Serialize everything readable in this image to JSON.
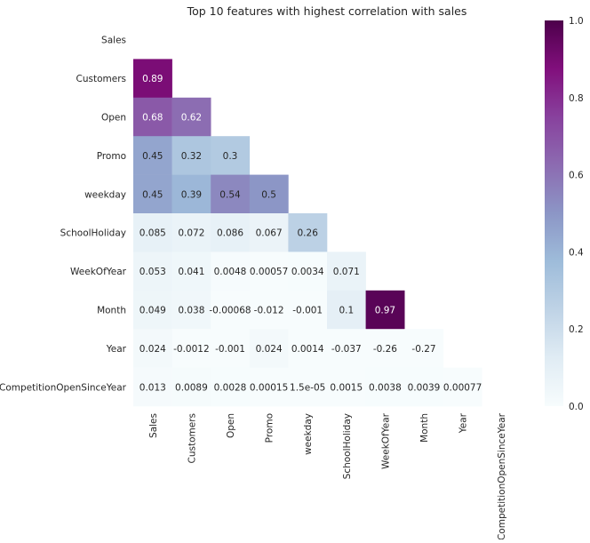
{
  "chart_data": {
    "type": "heatmap",
    "title": "Top 10 features with highest correlation with sales",
    "row_labels": [
      "Sales",
      "Customers",
      "Open",
      "Promo",
      "weekday",
      "SchoolHoliday",
      "WeekOfYear",
      "Month",
      "Year",
      "CompetitionOpenSinceYear"
    ],
    "col_labels": [
      "Sales",
      "Customers",
      "Open",
      "Promo",
      "weekday",
      "SchoolHoliday",
      "WeekOfYear",
      "Month",
      "Year",
      "CompetitionOpenSinceYear"
    ],
    "mask": "upper-triangle-including-diagonal",
    "cells": [
      {
        "row": 1,
        "col": 0,
        "value": 0.89,
        "label": "0.89"
      },
      {
        "row": 2,
        "col": 0,
        "value": 0.68,
        "label": "0.68"
      },
      {
        "row": 2,
        "col": 1,
        "value": 0.62,
        "label": "0.62"
      },
      {
        "row": 3,
        "col": 0,
        "value": 0.45,
        "label": "0.45"
      },
      {
        "row": 3,
        "col": 1,
        "value": 0.32,
        "label": "0.32"
      },
      {
        "row": 3,
        "col": 2,
        "value": 0.3,
        "label": "0.3"
      },
      {
        "row": 4,
        "col": 0,
        "value": 0.45,
        "label": "0.45"
      },
      {
        "row": 4,
        "col": 1,
        "value": 0.39,
        "label": "0.39"
      },
      {
        "row": 4,
        "col": 2,
        "value": 0.54,
        "label": "0.54"
      },
      {
        "row": 4,
        "col": 3,
        "value": 0.5,
        "label": "0.5"
      },
      {
        "row": 5,
        "col": 0,
        "value": 0.085,
        "label": "0.085"
      },
      {
        "row": 5,
        "col": 1,
        "value": 0.072,
        "label": "0.072"
      },
      {
        "row": 5,
        "col": 2,
        "value": 0.086,
        "label": "0.086"
      },
      {
        "row": 5,
        "col": 3,
        "value": 0.067,
        "label": "0.067"
      },
      {
        "row": 5,
        "col": 4,
        "value": 0.26,
        "label": "0.26"
      },
      {
        "row": 6,
        "col": 0,
        "value": 0.053,
        "label": "0.053"
      },
      {
        "row": 6,
        "col": 1,
        "value": 0.041,
        "label": "0.041"
      },
      {
        "row": 6,
        "col": 2,
        "value": 0.0048,
        "label": "0.0048"
      },
      {
        "row": 6,
        "col": 3,
        "value": 0.00057,
        "label": "0.00057"
      },
      {
        "row": 6,
        "col": 4,
        "value": 0.0034,
        "label": "0.0034"
      },
      {
        "row": 6,
        "col": 5,
        "value": 0.071,
        "label": "0.071"
      },
      {
        "row": 7,
        "col": 0,
        "value": 0.049,
        "label": "0.049"
      },
      {
        "row": 7,
        "col": 1,
        "value": 0.038,
        "label": "0.038"
      },
      {
        "row": 7,
        "col": 2,
        "value": -0.00068,
        "label": "-0.00068"
      },
      {
        "row": 7,
        "col": 3,
        "value": -0.012,
        "label": "-0.012"
      },
      {
        "row": 7,
        "col": 4,
        "value": -0.001,
        "label": "-0.001"
      },
      {
        "row": 7,
        "col": 5,
        "value": 0.1,
        "label": "0.1"
      },
      {
        "row": 7,
        "col": 6,
        "value": 0.97,
        "label": "0.97"
      },
      {
        "row": 8,
        "col": 0,
        "value": 0.024,
        "label": "0.024"
      },
      {
        "row": 8,
        "col": 1,
        "value": -0.0012,
        "label": "-0.0012"
      },
      {
        "row": 8,
        "col": 2,
        "value": -0.001,
        "label": "-0.001"
      },
      {
        "row": 8,
        "col": 3,
        "value": 0.024,
        "label": "0.024"
      },
      {
        "row": 8,
        "col": 4,
        "value": 0.0014,
        "label": "0.0014"
      },
      {
        "row": 8,
        "col": 5,
        "value": -0.037,
        "label": "-0.037"
      },
      {
        "row": 8,
        "col": 6,
        "value": -0.26,
        "label": "-0.26"
      },
      {
        "row": 8,
        "col": 7,
        "value": -0.27,
        "label": "-0.27"
      },
      {
        "row": 9,
        "col": 0,
        "value": 0.013,
        "label": "0.013"
      },
      {
        "row": 9,
        "col": 1,
        "value": 0.0089,
        "label": "0.0089"
      },
      {
        "row": 9,
        "col": 2,
        "value": 0.0028,
        "label": "0.0028"
      },
      {
        "row": 9,
        "col": 3,
        "value": 0.00015,
        "label": "0.00015"
      },
      {
        "row": 9,
        "col": 4,
        "value": 1.5e-05,
        "label": "1.5e-05"
      },
      {
        "row": 9,
        "col": 5,
        "value": 0.0015,
        "label": "0.0015"
      },
      {
        "row": 9,
        "col": 6,
        "value": 0.0038,
        "label": "0.0038"
      },
      {
        "row": 9,
        "col": 7,
        "value": 0.0039,
        "label": "0.0039"
      },
      {
        "row": 9,
        "col": 8,
        "value": 0.00077,
        "label": "0.00077"
      }
    ],
    "colorbar": {
      "colormap": "BuPu",
      "vmin": 0.0,
      "vmax": 1.0,
      "ticks": [
        "0.0",
        "0.2",
        "0.4",
        "0.6",
        "0.8",
        "1.0"
      ]
    },
    "grid": false
  }
}
